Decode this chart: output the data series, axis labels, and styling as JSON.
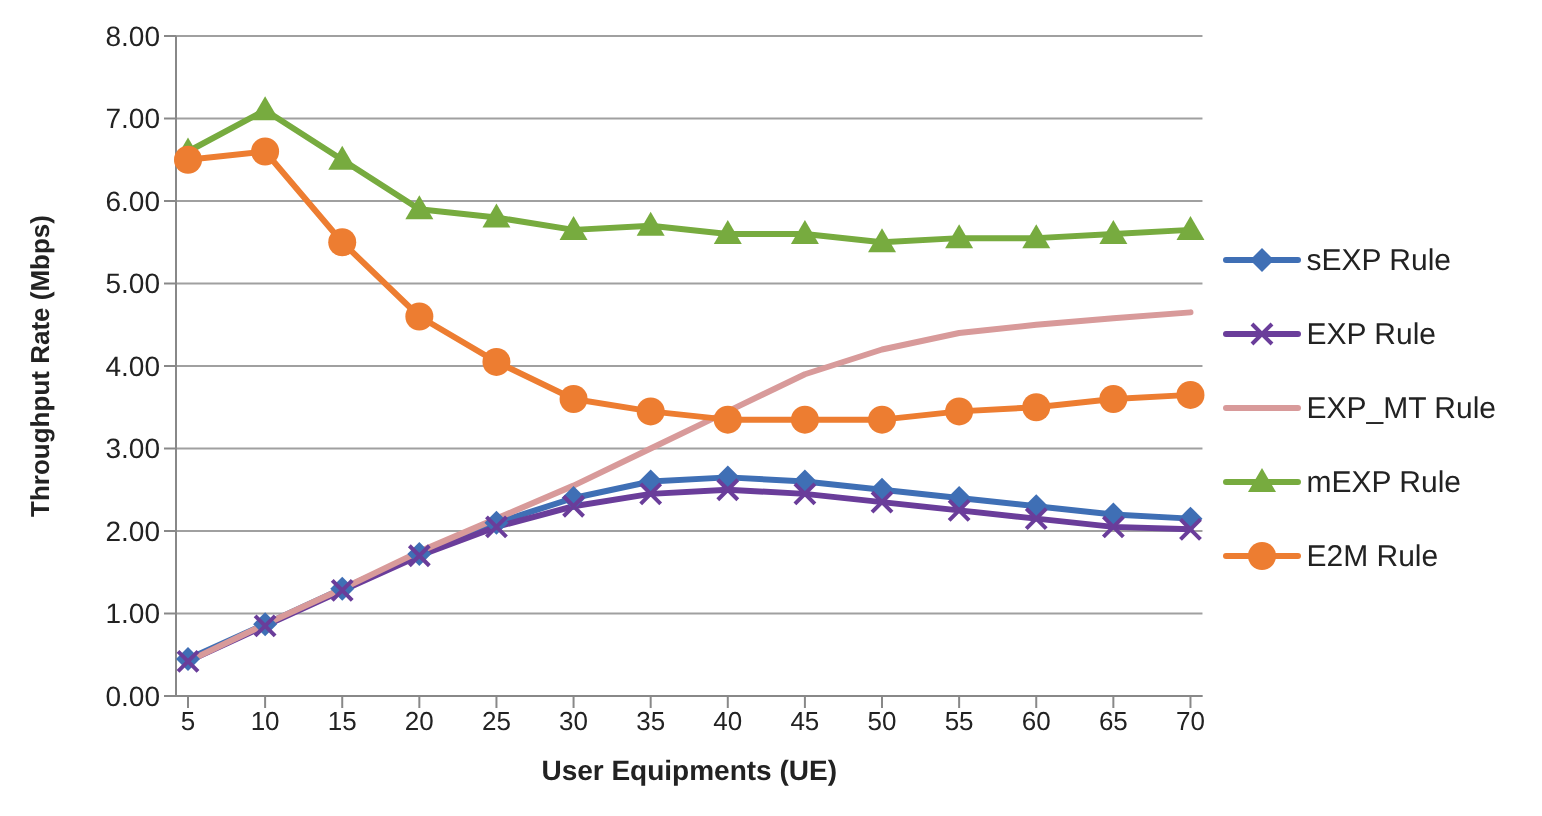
{
  "chart_data": {
    "type": "line",
    "xlabel": "User Equipments (UE)",
    "ylabel": "Throughput Rate (Mbps)",
    "categories": [
      "5",
      "10",
      "15",
      "20",
      "25",
      "30",
      "35",
      "40",
      "45",
      "50",
      "55",
      "60",
      "65",
      "70"
    ],
    "series": [
      {
        "name": "sEXP Rule",
        "color": "#3f6fb5",
        "marker": "diamond",
        "values": [
          0.45,
          0.87,
          1.3,
          1.72,
          2.1,
          2.4,
          2.6,
          2.65,
          2.6,
          2.5,
          2.4,
          2.3,
          2.2,
          2.15
        ]
      },
      {
        "name": "EXP Rule",
        "color": "#6a3d9a",
        "marker": "cross",
        "values": [
          0.42,
          0.85,
          1.28,
          1.7,
          2.05,
          2.3,
          2.45,
          2.5,
          2.45,
          2.35,
          2.25,
          2.15,
          2.05,
          2.02
        ]
      },
      {
        "name": "EXP_MT Rule",
        "color": "#d89a9a",
        "marker": "none",
        "values": [
          0.42,
          0.87,
          1.3,
          1.75,
          2.15,
          2.55,
          3.0,
          3.45,
          3.9,
          4.2,
          4.4,
          4.5,
          4.58,
          4.65
        ]
      },
      {
        "name": "mEXP Rule",
        "color": "#77ab3f",
        "marker": "triangle",
        "values": [
          6.6,
          7.1,
          6.5,
          5.9,
          5.8,
          5.65,
          5.7,
          5.6,
          5.6,
          5.5,
          5.55,
          5.55,
          5.6,
          5.65
        ]
      },
      {
        "name": "E2M Rule",
        "color": "#ed7d31",
        "marker": "circle",
        "values": [
          6.5,
          6.6,
          5.5,
          4.6,
          4.05,
          3.6,
          3.45,
          3.35,
          3.35,
          3.35,
          3.45,
          3.5,
          3.6,
          3.65
        ]
      }
    ],
    "ylim": [
      0,
      8
    ],
    "yticks": [
      {
        "value": 0,
        "label": "0.00"
      },
      {
        "value": 1,
        "label": "1.00"
      },
      {
        "value": 2,
        "label": "2.00"
      },
      {
        "value": 3,
        "label": "3.00"
      },
      {
        "value": 4,
        "label": "4.00"
      },
      {
        "value": 5,
        "label": "5.00"
      },
      {
        "value": 6,
        "label": "6.00"
      },
      {
        "value": 7,
        "label": "7.00"
      },
      {
        "value": 8,
        "label": "8.00"
      }
    ],
    "grid": "y",
    "legend": "right"
  }
}
